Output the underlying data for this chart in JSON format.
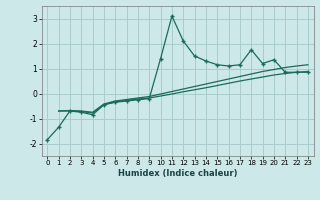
{
  "xlabel": "Humidex (Indice chaleur)",
  "bg_color": "#cce8e8",
  "grid_color": "#aacccc",
  "line_color": "#1a6b5a",
  "xlim": [
    -0.5,
    23.5
  ],
  "ylim": [
    -2.5,
    3.5
  ],
  "yticks": [
    -2,
    -1,
    0,
    1,
    2,
    3
  ],
  "xticks": [
    0,
    1,
    2,
    3,
    4,
    5,
    6,
    7,
    8,
    9,
    10,
    11,
    12,
    13,
    14,
    15,
    16,
    17,
    18,
    19,
    20,
    21,
    22,
    23
  ],
  "line1_x": [
    0,
    1,
    2,
    3,
    4,
    5,
    6,
    7,
    8,
    9,
    10,
    11,
    12,
    13,
    14,
    15,
    16,
    17,
    18,
    19,
    20,
    21,
    22,
    23
  ],
  "line1_y": [
    -1.85,
    -1.35,
    -0.7,
    -0.75,
    -0.85,
    -0.45,
    -0.35,
    -0.3,
    -0.25,
    -0.2,
    1.4,
    3.1,
    2.1,
    1.5,
    1.3,
    1.15,
    1.1,
    1.15,
    1.75,
    1.2,
    1.35,
    0.85,
    0.85,
    0.85
  ],
  "line2_x": [
    1,
    2,
    3,
    4,
    5,
    6,
    7,
    8,
    9,
    10,
    11,
    12,
    13,
    14,
    15,
    16,
    17,
    18,
    19,
    20,
    21,
    22,
    23
  ],
  "line2_y": [
    -0.7,
    -0.7,
    -0.72,
    -0.78,
    -0.45,
    -0.33,
    -0.27,
    -0.22,
    -0.18,
    -0.1,
    -0.02,
    0.07,
    0.15,
    0.23,
    0.32,
    0.41,
    0.5,
    0.58,
    0.66,
    0.74,
    0.8,
    0.85,
    0.88
  ],
  "line3_x": [
    1,
    2,
    3,
    4,
    5,
    6,
    7,
    8,
    9,
    10,
    11,
    12,
    13,
    14,
    15,
    16,
    17,
    18,
    19,
    20,
    21,
    22,
    23
  ],
  "line3_y": [
    -0.7,
    -0.68,
    -0.7,
    -0.75,
    -0.42,
    -0.3,
    -0.24,
    -0.18,
    -0.12,
    -0.02,
    0.08,
    0.18,
    0.28,
    0.38,
    0.48,
    0.58,
    0.68,
    0.78,
    0.88,
    0.96,
    1.04,
    1.1,
    1.15
  ]
}
